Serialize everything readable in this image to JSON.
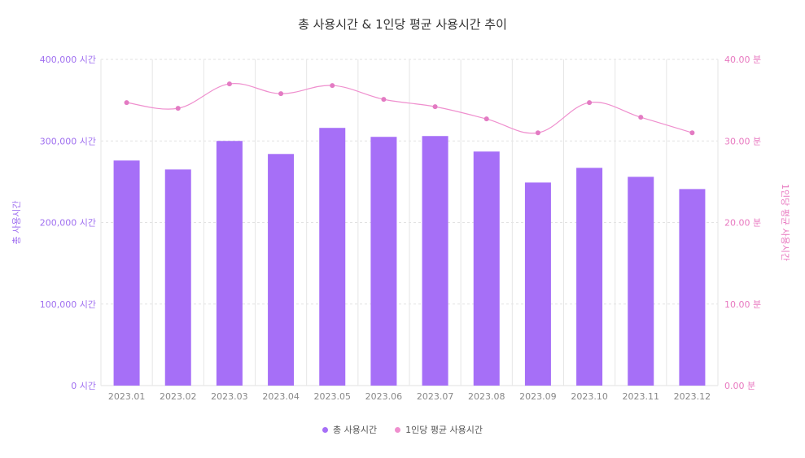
{
  "chart_data": {
    "type": "bar",
    "title": "총 사용시간 & 1인당 평균 사용시간 추이",
    "categories": [
      "2023.01",
      "2023.02",
      "2023.03",
      "2023.04",
      "2023.05",
      "2023.06",
      "2023.07",
      "2023.08",
      "2023.09",
      "2023.10",
      "2023.11",
      "2023.12"
    ],
    "series": [
      {
        "name": "총 사용시간",
        "type": "bar",
        "axis": "left",
        "color": "#a66ff7",
        "values": [
          276000,
          265000,
          300000,
          284000,
          316000,
          305000,
          306000,
          287000,
          249000,
          267000,
          256000,
          241000
        ]
      },
      {
        "name": "1인당 평균 사용시간",
        "type": "line",
        "axis": "right",
        "color": "#ef8fce",
        "values": [
          34.7,
          34.0,
          37.0,
          35.8,
          36.8,
          35.1,
          34.2,
          32.7,
          31.0,
          34.7,
          32.9,
          31.0
        ]
      }
    ],
    "y_left": {
      "label": "총 사용시간",
      "ylim": [
        0,
        400000
      ],
      "ticks": [
        0,
        100000,
        200000,
        300000,
        400000
      ],
      "tick_labels": [
        "0 시간",
        "100,000 시간",
        "200,000 시간",
        "300,000 시간",
        "400,000 시간"
      ]
    },
    "y_right": {
      "label": "1인당 평균 사용시간",
      "ylim": [
        0,
        40
      ],
      "ticks": [
        0,
        10,
        20,
        30,
        40
      ],
      "tick_labels": [
        "0.00 분",
        "10.00 분",
        "20.00 분",
        "30.00 분",
        "40.00 분"
      ]
    },
    "grid": true,
    "legend": "bottom-center"
  }
}
